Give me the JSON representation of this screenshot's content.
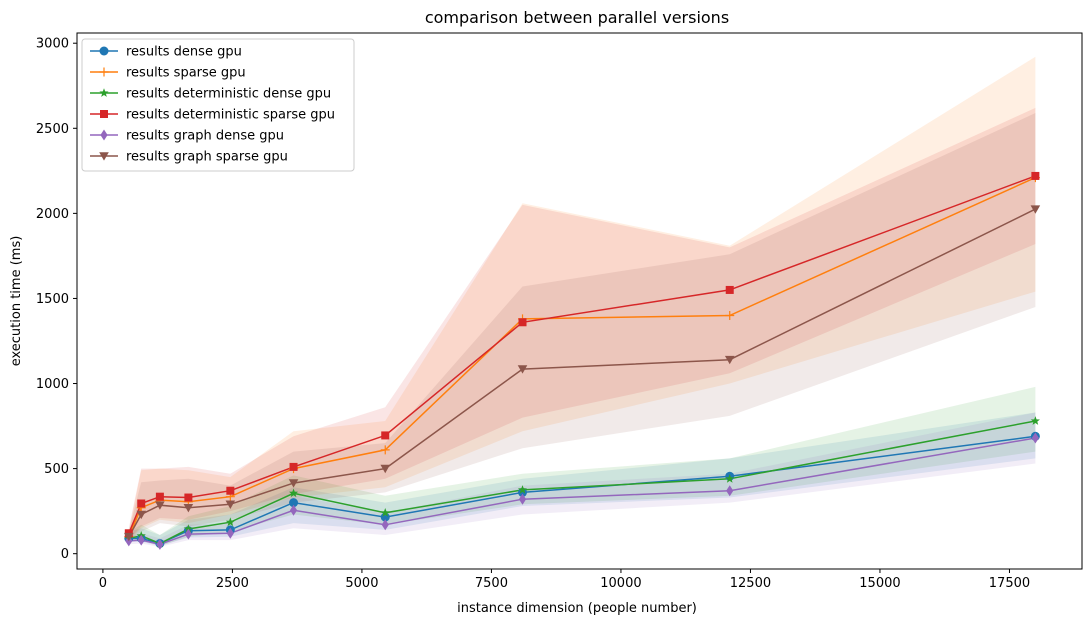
{
  "chart_data": {
    "type": "line",
    "title": "comparison between parallel versions",
    "xlabel": "instance dimension (people number)",
    "ylabel": "execution time (ms)",
    "xlim": [
      -500,
      18900
    ],
    "ylim": [
      -90,
      3060
    ],
    "xticks": [
      0,
      2500,
      5000,
      7500,
      10000,
      12500,
      15000,
      17500
    ],
    "yticks": [
      0,
      500,
      1000,
      1500,
      2000,
      2500,
      3000
    ],
    "grid": false,
    "legend_position": "top-left",
    "x": [
      500,
      740,
      1100,
      1650,
      2460,
      3680,
      5450,
      8100,
      12100,
      18000
    ],
    "series": [
      {
        "name": "results dense gpu",
        "color": "#1f77b4",
        "marker": "circle",
        "values": [
          90,
          90,
          60,
          135,
          140,
          300,
          215,
          360,
          455,
          690
        ],
        "band_low": [
          70,
          70,
          45,
          95,
          100,
          180,
          140,
          280,
          330,
          560
        ],
        "band_high": [
          130,
          150,
          110,
          200,
          230,
          390,
          300,
          440,
          560,
          830
        ]
      },
      {
        "name": "results sparse gpu",
        "color": "#ff7f0e",
        "marker": "plus",
        "values": [
          100,
          270,
          315,
          305,
          335,
          500,
          610,
          1380,
          1400,
          2210
        ],
        "band_low": [
          70,
          150,
          200,
          180,
          230,
          330,
          390,
          720,
          1000,
          1540
        ],
        "band_high": [
          130,
          490,
          500,
          490,
          450,
          720,
          780,
          2060,
          1810,
          2920
        ]
      },
      {
        "name": "results deterministic dense gpu",
        "color": "#2ca02c",
        "marker": "star",
        "values": [
          90,
          105,
          60,
          145,
          185,
          355,
          240,
          375,
          440,
          780
        ],
        "band_low": [
          70,
          80,
          45,
          100,
          130,
          230,
          170,
          290,
          340,
          600
        ],
        "band_high": [
          130,
          170,
          110,
          220,
          280,
          460,
          340,
          470,
          560,
          980
        ]
      },
      {
        "name": "results deterministic sparse gpu",
        "color": "#d62728",
        "marker": "square",
        "values": [
          120,
          295,
          335,
          330,
          370,
          510,
          695,
          1360,
          1550,
          2220
        ],
        "band_low": [
          80,
          160,
          210,
          200,
          250,
          350,
          440,
          800,
          1060,
          1820
        ],
        "band_high": [
          150,
          500,
          500,
          510,
          470,
          690,
          860,
          2050,
          1800,
          2620
        ]
      },
      {
        "name": "results graph dense gpu",
        "color": "#9467bd",
        "marker": "diamond",
        "values": [
          75,
          80,
          55,
          115,
          120,
          255,
          170,
          320,
          370,
          680
        ],
        "band_low": [
          55,
          60,
          40,
          80,
          80,
          150,
          110,
          230,
          300,
          530
        ],
        "band_high": [
          100,
          120,
          90,
          170,
          180,
          340,
          240,
          400,
          470,
          830
        ]
      },
      {
        "name": "results graph sparse gpu",
        "color": "#8c564b",
        "marker": "triangle-down",
        "values": [
          100,
          230,
          285,
          270,
          290,
          415,
          500,
          1085,
          1140,
          2025
        ],
        "band_low": [
          70,
          130,
          180,
          160,
          200,
          300,
          360,
          620,
          810,
          1450
        ],
        "band_high": [
          130,
          420,
          430,
          440,
          400,
          600,
          650,
          1570,
          1760,
          2590
        ]
      }
    ]
  }
}
